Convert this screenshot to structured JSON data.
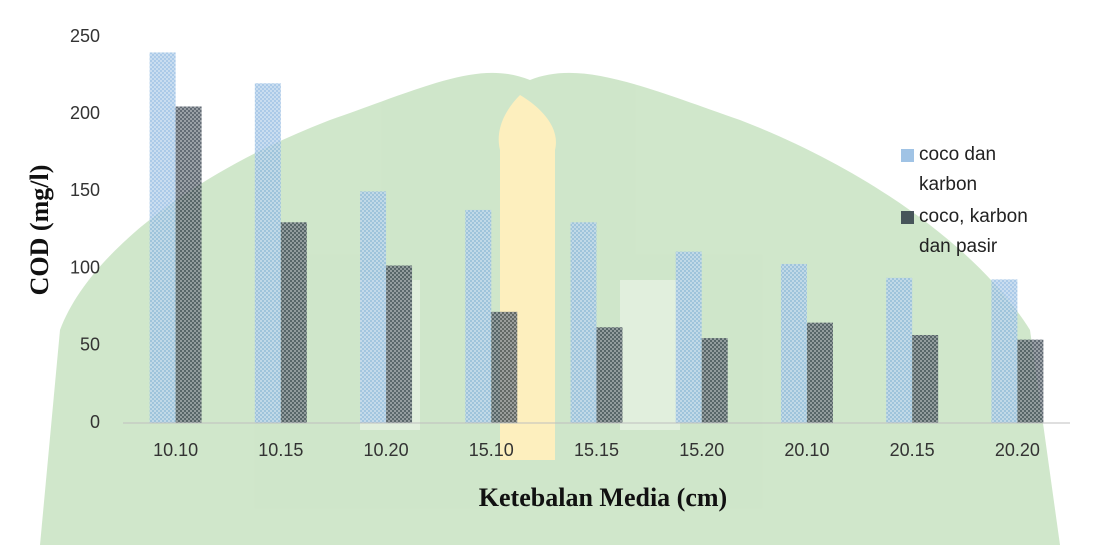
{
  "chart_data": {
    "type": "bar",
    "x_label": "Ketebalan Media (cm)",
    "y_label": "COD (mg/l)",
    "categories": [
      "10.10",
      "10.15",
      "10.20",
      "15.10",
      "15.15",
      "15.20",
      "20.10",
      "20.15",
      "20.20"
    ],
    "series": [
      {
        "name": "coco dan karbon",
        "color": "#8fb8e0",
        "values": [
          240,
          220,
          150,
          138,
          130,
          111,
          103,
          94,
          93
        ]
      },
      {
        "name": "coco, karbon dan pasir",
        "color": "#2f3b47",
        "values": [
          205,
          130,
          102,
          72,
          62,
          55,
          65,
          57,
          54
        ]
      }
    ],
    "ylim": [
      0,
      250
    ],
    "yticks": [
      0,
      50,
      100,
      150,
      200,
      250
    ],
    "grid": false,
    "legend": "right"
  }
}
